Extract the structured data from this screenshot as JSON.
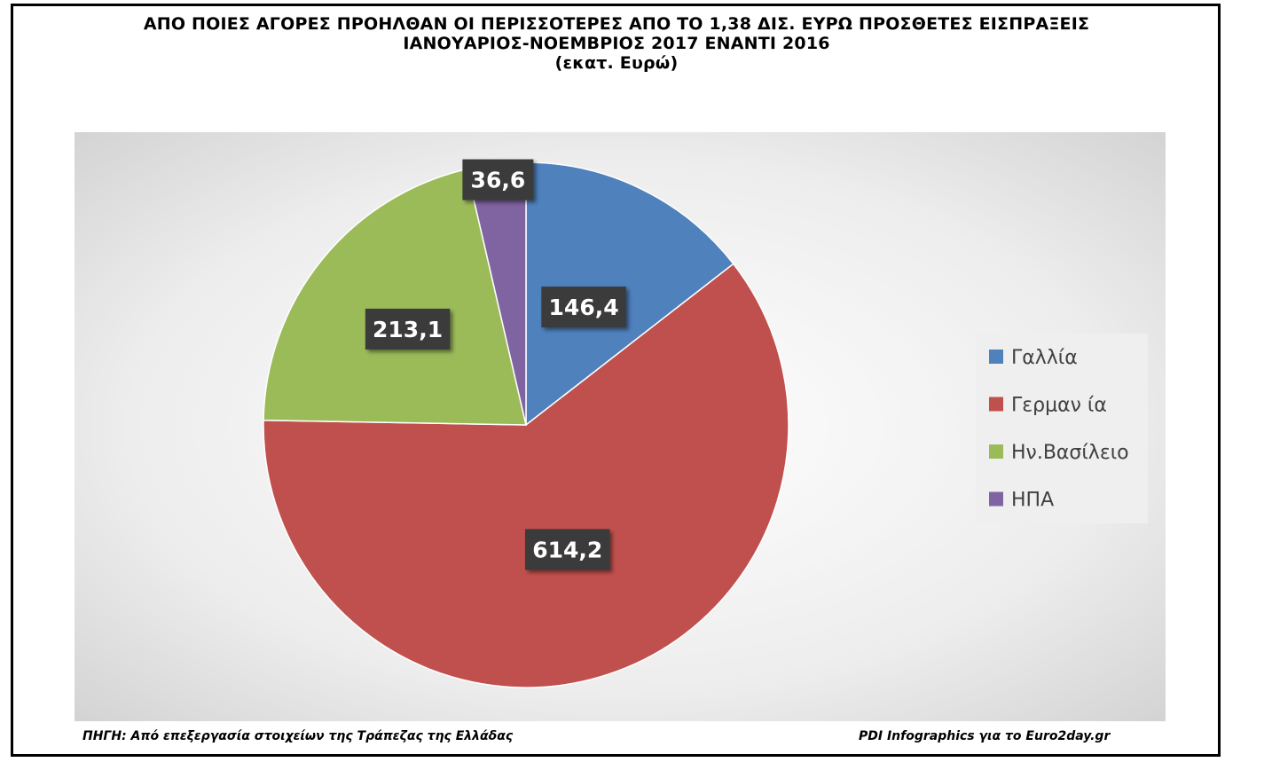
{
  "title": {
    "line1": "ΑΠΟ ΠΟΙΕΣ ΑΓΟΡΕΣ ΠΡΟΗΛΘΑΝ ΟΙ ΠΕΡΙΣΣΟΤΕΡΕΣ ΑΠΟ ΤΟ 1,38 ΔΙΣ. ΕΥΡΩ ΠΡΟΣΘΕΤΕΣ ΕΙΣΠΡΑΞΕΙΣ",
    "line2": "ΙΑΝΟΥΑΡΙΟΣ-ΝΟΕΜΒΡΙΟΣ 2017 ΕΝΑΝΤΙ 2016",
    "line3": "(εκατ. Ευρώ)"
  },
  "footer": {
    "source": "ΠΗΓΗ: Από επεξεργασία στοιχείων της Τράπεζας της Ελλάδας",
    "credit": "PDI Infographics για το Euro2day.gr"
  },
  "chart_data": {
    "type": "pie",
    "categories": [
      "Γαλλία",
      "Γερμαν ία",
      "Ην.Βασίλειο",
      "ΗΠΑ"
    ],
    "values": [
      146.4,
      614.2,
      213.1,
      36.6
    ],
    "data_labels": [
      "146,4",
      "614,2",
      "213,1",
      "36,6"
    ],
    "colors": [
      "#4f81bd",
      "#c0504d",
      "#9bbb59",
      "#8064a2"
    ],
    "start_angle": "12 o'clock",
    "direction": "clockwise",
    "legend_position": "right"
  }
}
